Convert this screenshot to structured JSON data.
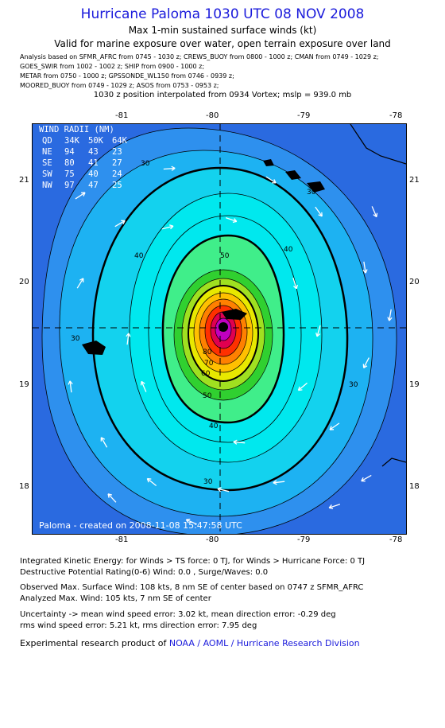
{
  "header": {
    "title": "Hurricane Paloma 1030 UTC 08 NOV 2008",
    "subtitle1": "Max 1-min sustained surface winds (kt)",
    "subtitle2": "Valid for marine exposure over water, open terrain exposure over land",
    "analysis_lines": [
      "Analysis based on  SFMR_AFRC from 0745 - 1030 z;  CREWS_BUOY from 0800 - 1000 z;  CMAN from 0749 - 1029 z;",
      "GOES_SWIR from 1002 - 1002 z;  SHIP from 0900 - 1000 z;",
      "METAR from 0750 - 1000 z;  GPSSONDE_WL150 from 0746 - 0939 z;",
      "MOORED_BUOY from 0749 - 1029 z;  ASOS from 0753 - 0953 z;"
    ],
    "position_note": "1030 z position interpolated from 0934 Vortex; mslp = 939.0 mb"
  },
  "axes": {
    "lon_ticks": [
      "-81",
      "-80",
      "-79",
      "-78"
    ],
    "lat_ticks": [
      "21",
      "20",
      "19",
      "18"
    ]
  },
  "wind_radii": {
    "title": "WIND RADII (NM)",
    "header": [
      "QD",
      "34K",
      "50K",
      "64K"
    ],
    "rows": [
      [
        "NE",
        "94",
        "43",
        "23"
      ],
      [
        "SE",
        "80",
        "41",
        "27"
      ],
      [
        "SW",
        "75",
        "40",
        "24"
      ],
      [
        "NW",
        "97",
        "47",
        "25"
      ]
    ]
  },
  "contour_labels": [
    "30",
    "30",
    "30",
    "30",
    "30",
    "40",
    "40",
    "40",
    "50",
    "50",
    "60",
    "70",
    "80"
  ],
  "credit": "Paloma - created on 2008-11-08 15:47:58 UTC",
  "footer": {
    "ike": "Integrated Kinetic Energy:  for Winds > TS force: 0 TJ,  for Winds > Hurricane Force: 0 TJ",
    "dpr": "Destructive Potential Rating(0-6)   Wind: 0.0 , Surge/Waves: 0.0",
    "observed": "Observed Max. Surface Wind: 108 kts, 8 nm SE of center based on 0747 z SFMR_AFRC",
    "analyzed": "Analyzed Max. Wind: 105 kts, 7 nm SE of center",
    "uncert1": "Uncertainty -> mean wind speed error: 3.02 kt,   mean direction error:  -0.29 deg",
    "uncert2": "rms wind speed error: 5.21 kt,   rms direction error: 7.95 deg",
    "product_prefix": "Experimental research product of",
    "product_org": "NOAA / AOML / Hurricane Research Division"
  },
  "colors": {
    "title": "#1a1adb",
    "outer": "#2a6ae0",
    "ring30": "#2e90ee",
    "ring34": "#1db2f2",
    "ring40": "#13d2ee",
    "ring45": "#00e8ee",
    "ring50": "#40ee8a",
    "core": "#c000c0"
  }
}
